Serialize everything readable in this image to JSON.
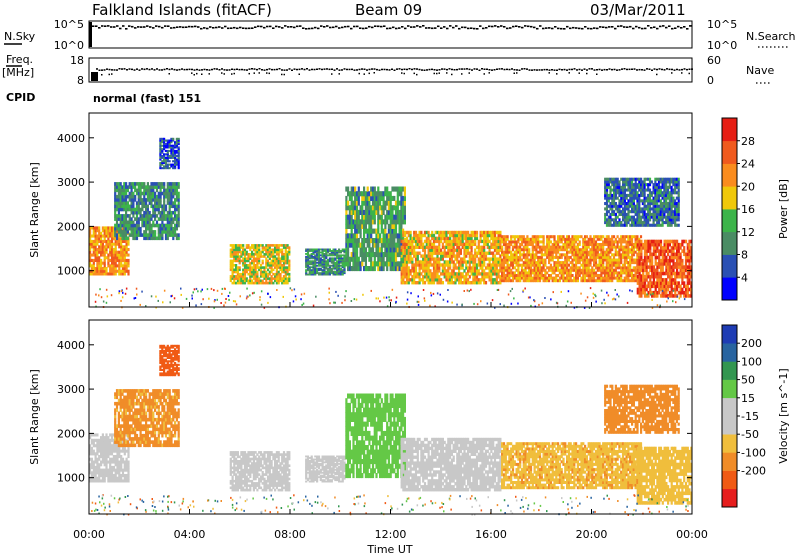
{
  "header": {
    "site": "Falkland Islands (fitACF)",
    "beam": "Beam 09",
    "date": "03/Mar/2011"
  },
  "strip_labels": {
    "nsky": "N.Sky",
    "nsky_top": "10^5",
    "nsky_bottom": "10^0",
    "nsearch": "N.Search",
    "nsearch_top": "10^5",
    "nsearch_bottom": "10^0",
    "freq": "Freq.",
    "freq_unit": "[MHz]",
    "freq_top": "18",
    "freq_bottom": "8",
    "nave": "Nave",
    "nave_top": "60",
    "nave_bottom": "0",
    "cpid": "CPID",
    "cpid_value": "normal (fast) 151"
  },
  "colors": {
    "power": [
      "#0000ff",
      "#2a50b4",
      "#4a8c64",
      "#3cb44a",
      "#f0c80a",
      "#fa8c1e",
      "#f05a1e",
      "#e61e14"
    ],
    "velocity": [
      "#e61e1e",
      "#f05a14",
      "#f08c28",
      "#f0be3c",
      "#c8c8c8",
      "#c8c8c8",
      "#64c846",
      "#329650",
      "#2864a0",
      "#1e3cb4"
    ],
    "ground_scatter": "#c8c8c8"
  },
  "chart_data": [
    {
      "type": "heatmap",
      "ylabel": "Slant Range [km]",
      "xlabel": "",
      "x_ticks": [
        "00:00",
        "04:00",
        "08:00",
        "12:00",
        "16:00",
        "20:00",
        "00:00"
      ],
      "y_ticks": [
        "1000",
        "2000",
        "3000",
        "4000"
      ],
      "ylim": [
        180,
        4560
      ],
      "colorbar": {
        "label": "Power [dB]",
        "ticks": [
          "4",
          "8",
          "12",
          "16",
          "20",
          "24",
          "28"
        ],
        "range": [
          0,
          32
        ]
      },
      "echo_regions": [
        {
          "t_start": 0.0,
          "t_end": 1.6,
          "range_low": 900,
          "range_high": 2000,
          "power": 22
        },
        {
          "t_start": 1.0,
          "t_end": 3.6,
          "range_low": 1700,
          "range_high": 3000,
          "power": 10
        },
        {
          "t_start": 2.8,
          "t_end": 3.6,
          "range_low": 3300,
          "range_high": 4000,
          "power": 6
        },
        {
          "t_start": 5.6,
          "t_end": 8.0,
          "range_low": 700,
          "range_high": 1600,
          "power": 18
        },
        {
          "t_start": 8.6,
          "t_end": 10.2,
          "range_low": 900,
          "range_high": 1500,
          "power": 10
        },
        {
          "t_start": 10.2,
          "t_end": 12.6,
          "range_low": 1000,
          "range_high": 2900,
          "power": 12
        },
        {
          "t_start": 12.4,
          "t_end": 16.4,
          "range_low": 700,
          "range_high": 1900,
          "power": 20
        },
        {
          "t_start": 16.4,
          "t_end": 22.0,
          "range_low": 750,
          "range_high": 1800,
          "power": 22
        },
        {
          "t_start": 21.8,
          "t_end": 24.0,
          "range_low": 400,
          "range_high": 1700,
          "power": 26
        },
        {
          "t_start": 20.5,
          "t_end": 23.5,
          "range_low": 2000,
          "range_high": 3100,
          "power": 8
        }
      ]
    },
    {
      "type": "heatmap",
      "ylabel": "Slant Range [km]",
      "xlabel": "Time UT",
      "x_ticks": [
        "00:00",
        "04:00",
        "08:00",
        "12:00",
        "16:00",
        "20:00",
        "00:00"
      ],
      "y_ticks": [
        "1000",
        "2000",
        "3000",
        "4000"
      ],
      "ylim": [
        180,
        4560
      ],
      "colorbar": {
        "label": "Velocity [m s^-1]",
        "ticks": [
          "200",
          "100",
          "50",
          "15",
          "-15",
          "-50",
          "-100",
          "-200"
        ],
        "range": [
          -250,
          250
        ]
      },
      "echo_regions": [
        {
          "t_start": 0.0,
          "t_end": 1.6,
          "range_low": 900,
          "range_high": 2000,
          "velocity": 0
        },
        {
          "t_start": 1.0,
          "t_end": 3.6,
          "range_low": 1700,
          "range_high": 3000,
          "velocity": -60
        },
        {
          "t_start": 2.8,
          "t_end": 3.6,
          "range_low": 3300,
          "range_high": 4000,
          "velocity": -150
        },
        {
          "t_start": 5.6,
          "t_end": 8.0,
          "range_low": 700,
          "range_high": 1600,
          "velocity": 0
        },
        {
          "t_start": 8.6,
          "t_end": 10.2,
          "range_low": 900,
          "range_high": 1500,
          "velocity": 0
        },
        {
          "t_start": 10.2,
          "t_end": 12.6,
          "range_low": 1000,
          "range_high": 2900,
          "velocity": 30
        },
        {
          "t_start": 12.4,
          "t_end": 16.4,
          "range_low": 700,
          "range_high": 1900,
          "velocity": 0
        },
        {
          "t_start": 16.4,
          "t_end": 22.0,
          "range_low": 750,
          "range_high": 1800,
          "velocity": -40
        },
        {
          "t_start": 21.8,
          "t_end": 24.0,
          "range_low": 400,
          "range_high": 1700,
          "velocity": -30
        },
        {
          "t_start": 20.5,
          "t_end": 23.5,
          "range_low": 2000,
          "range_high": 3100,
          "velocity": -70
        }
      ]
    }
  ]
}
